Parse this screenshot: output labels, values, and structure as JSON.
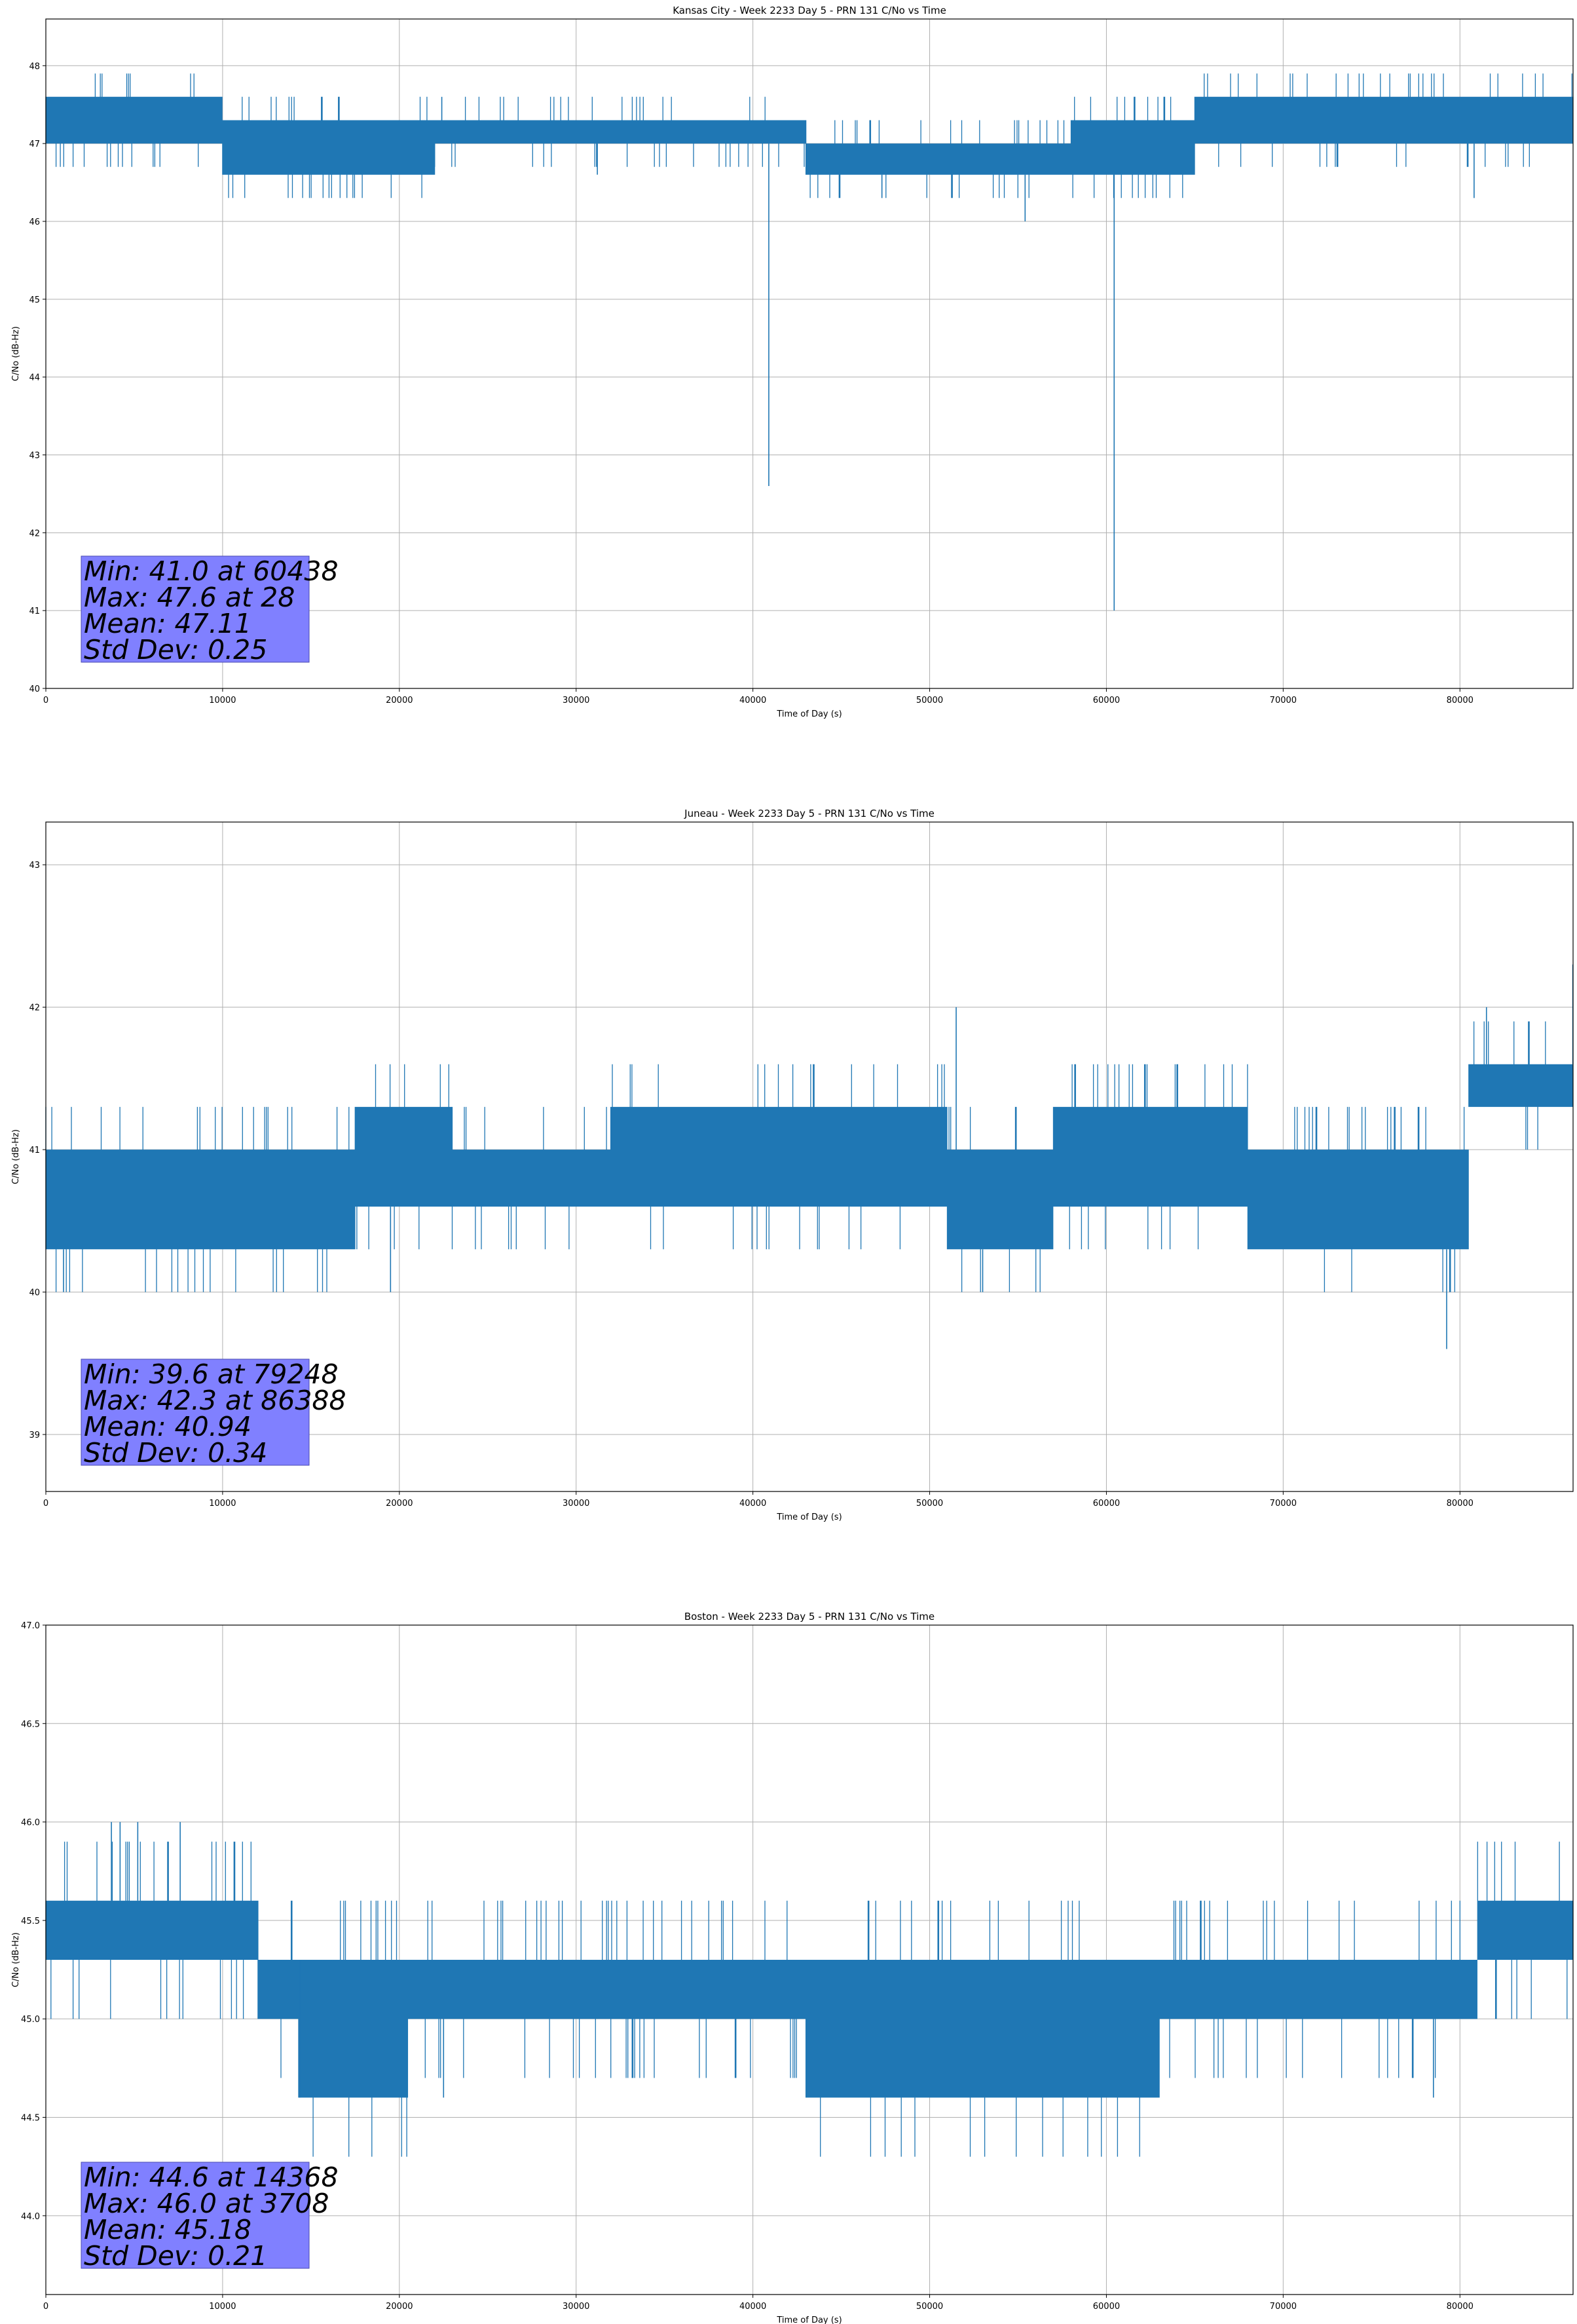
{
  "colors": {
    "series": "#1f77b4",
    "stats_box": "#8080ff",
    "grid": "#b0b0b0"
  },
  "chart_data": [
    {
      "type": "line",
      "title": "Kansas City - Week 2233 Day 5 - PRN 131 C/No vs Time",
      "xlabel": "Time of Day (s)",
      "ylabel": "C/No (dB-Hz)",
      "xlim": [
        0,
        86400
      ],
      "ylim": [
        40,
        48.6
      ],
      "grid": true,
      "xticks": [
        0,
        10000,
        20000,
        30000,
        40000,
        50000,
        60000,
        70000,
        80000
      ],
      "yticks": [
        40,
        41,
        42,
        43,
        44,
        45,
        46,
        47,
        48
      ],
      "ytick_labels": [
        "40",
        "41",
        "42",
        "43",
        "44",
        "45",
        "46",
        "47",
        "48"
      ],
      "series": [
        {
          "bands": [
            {
              "x0": 0,
              "x1": 10000,
              "lo": 47.0,
              "hi": 47.6
            },
            {
              "x0": 10000,
              "x1": 22000,
              "lo": 46.6,
              "hi": 47.3
            },
            {
              "x0": 22000,
              "x1": 43000,
              "lo": 47.0,
              "hi": 47.3
            },
            {
              "x0": 43000,
              "x1": 58000,
              "lo": 46.6,
              "hi": 47.0
            },
            {
              "x0": 58000,
              "x1": 65000,
              "lo": 46.6,
              "hi": 47.3
            },
            {
              "x0": 65000,
              "x1": 86400,
              "lo": 47.0,
              "hi": 47.6
            }
          ],
          "spikes": [
            {
              "x": 40900,
              "y": 42.6
            },
            {
              "x": 60438,
              "y": 41.0
            },
            {
              "x": 55400,
              "y": 46.0
            },
            {
              "x": 80800,
              "y": 46.3
            },
            {
              "x": 31200,
              "y": 46.6
            },
            {
              "x": 47300,
              "y": 46.3
            },
            {
              "x": 22400,
              "y": 47.6
            }
          ]
        }
      ],
      "stats": [
        "Min: 41.0 at 60438",
        "Max: 47.6 at 28",
        "Mean: 47.11",
        "Std Dev: 0.25"
      ]
    },
    {
      "type": "line",
      "title": "Juneau - Week 2233 Day 5 - PRN 131 C/No vs Time",
      "xlabel": "Time of Day (s)",
      "ylabel": "C/No (dB-Hz)",
      "xlim": [
        0,
        86400
      ],
      "ylim": [
        38.6,
        43.3
      ],
      "grid": true,
      "xticks": [
        0,
        10000,
        20000,
        30000,
        40000,
        50000,
        60000,
        70000,
        80000
      ],
      "yticks": [
        39,
        40,
        41,
        42,
        43
      ],
      "ytick_labels": [
        "39",
        "40",
        "41",
        "42",
        "43"
      ],
      "series": [
        {
          "bands": [
            {
              "x0": 0,
              "x1": 17500,
              "lo": 40.3,
              "hi": 41.0
            },
            {
              "x0": 17500,
              "x1": 23000,
              "lo": 40.6,
              "hi": 41.3
            },
            {
              "x0": 23000,
              "x1": 32000,
              "lo": 40.6,
              "hi": 41.0
            },
            {
              "x0": 32000,
              "x1": 51000,
              "lo": 40.6,
              "hi": 41.3
            },
            {
              "x0": 51000,
              "x1": 57000,
              "lo": 40.3,
              "hi": 41.0
            },
            {
              "x0": 57000,
              "x1": 68000,
              "lo": 40.6,
              "hi": 41.3
            },
            {
              "x0": 68000,
              "x1": 80500,
              "lo": 40.3,
              "hi": 41.0
            },
            {
              "x0": 80500,
              "x1": 86400,
              "lo": 41.3,
              "hi": 41.6
            }
          ],
          "spikes": [
            {
              "x": 79248,
              "y": 39.6
            },
            {
              "x": 86388,
              "y": 42.3
            },
            {
              "x": 51500,
              "y": 42.0
            },
            {
              "x": 81500,
              "y": 42.0
            },
            {
              "x": 19500,
              "y": 40.0
            },
            {
              "x": 1000,
              "y": 40.0
            },
            {
              "x": 53000,
              "y": 40.0
            }
          ]
        }
      ],
      "stats": [
        "Min: 39.6 at 79248",
        "Max: 42.3 at 86388",
        "Mean: 40.94",
        "Std Dev: 0.34"
      ]
    },
    {
      "type": "line",
      "title": "Boston - Week 2233 Day 5 - PRN 131 C/No vs Time",
      "xlabel": "Time of Day (s)",
      "ylabel": "C/No (dB-Hz)",
      "xlim": [
        0,
        86400
      ],
      "ylim": [
        43.6,
        47.0
      ],
      "grid": true,
      "xticks": [
        0,
        10000,
        20000,
        30000,
        40000,
        50000,
        60000,
        70000,
        80000
      ],
      "yticks": [
        44.0,
        44.5,
        45.0,
        45.5,
        46.0,
        46.5,
        47.0
      ],
      "ytick_labels": [
        "44.0",
        "44.5",
        "45.0",
        "45.5",
        "46.0",
        "46.5",
        "47.0"
      ],
      "series": [
        {
          "bands": [
            {
              "x0": 0,
              "x1": 12000,
              "lo": 45.3,
              "hi": 45.6
            },
            {
              "x0": 12000,
              "x1": 14300,
              "lo": 45.0,
              "hi": 45.3
            },
            {
              "x0": 14300,
              "x1": 20500,
              "lo": 44.6,
              "hi": 45.3
            },
            {
              "x0": 20500,
              "x1": 43000,
              "lo": 45.0,
              "hi": 45.3
            },
            {
              "x0": 43000,
              "x1": 63000,
              "lo": 44.6,
              "hi": 45.3
            },
            {
              "x0": 63000,
              "x1": 81000,
              "lo": 45.0,
              "hi": 45.3
            },
            {
              "x0": 81000,
              "x1": 86400,
              "lo": 45.3,
              "hi": 45.6
            }
          ],
          "spikes": [
            {
              "x": 3708,
              "y": 46.0
            },
            {
              "x": 4200,
              "y": 46.0
            },
            {
              "x": 5200,
              "y": 46.0
            },
            {
              "x": 7600,
              "y": 46.0
            },
            {
              "x": 14368,
              "y": 44.6
            },
            {
              "x": 22500,
              "y": 44.6
            },
            {
              "x": 78500,
              "y": 44.6
            }
          ]
        }
      ],
      "stats": [
        "Min: 44.6 at 14368",
        "Max: 46.0 at 3708",
        "Mean: 45.18",
        "Std Dev: 0.21"
      ]
    }
  ]
}
